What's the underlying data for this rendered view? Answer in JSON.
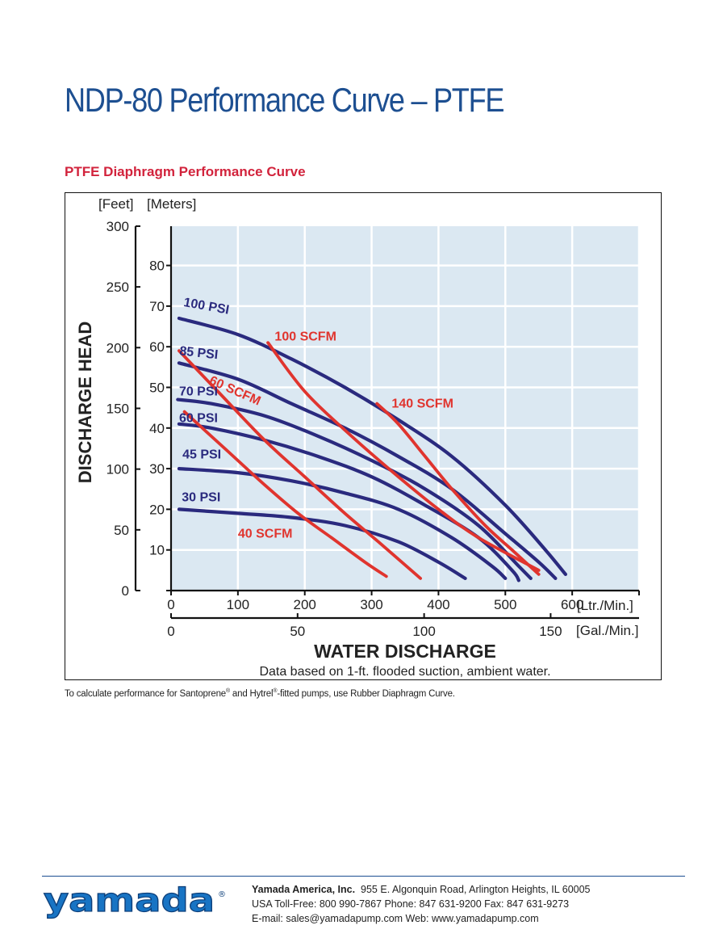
{
  "page": {
    "title": "NDP-80 Performance Curve – PTFE",
    "chart_heading": "PTFE Diaphragm Performance Curve",
    "footnote_parts": [
      "To calculate performance for Santoprene",
      "®",
      " and Hytrel",
      "®",
      "-fitted pumps, use Rubber Diaphragm Curve."
    ]
  },
  "footer": {
    "logo_text": "yamada",
    "logo_mark": "®",
    "company": "Yamada America, Inc.",
    "address": "955 E. Algonquin Road, Arlington Heights, IL 60005",
    "phones": "USA Toll-Free: 800 990-7867 Phone: 847 631-9200 Fax: 847 631-9273",
    "web": "E-mail: sales@yamadapump.com   Web: www.yamadapump.com"
  },
  "colors": {
    "title": "#1d4f91",
    "heading": "#d2233c",
    "plot_bg": "#dbe8f2",
    "psi_curve": "#2a2a7e",
    "scfm_curve": "#e0342e"
  },
  "chart_data": {
    "type": "line",
    "xlabel": "WATER DISCHARGE",
    "x_unit_primary": "[Ltr./Min.]",
    "x_unit_secondary": "[Gal./Min.]",
    "ylabel": "DISCHARGE HEAD",
    "y_unit_left": "[Feet]",
    "y_unit_right": "[Meters]",
    "note": "Data based on 1-ft. flooded suction, ambient water.",
    "xlim": [
      0,
      700
    ],
    "ylim_meters": [
      0,
      90
    ],
    "x_ticks_lpm": [
      0,
      100,
      200,
      300,
      400,
      500,
      600
    ],
    "x_ticks_gpm": [
      0,
      50,
      100,
      150
    ],
    "y_ticks_meters": [
      0,
      10,
      20,
      30,
      40,
      50,
      60,
      70,
      80
    ],
    "y_ticks_feet": [
      0,
      50,
      100,
      150,
      200,
      250,
      300
    ],
    "grid": true,
    "series": [
      {
        "name": "100 PSI",
        "kind": "psi",
        "x": [
          12,
          100,
          180,
          260,
          340,
          420,
          500,
          560,
          590
        ],
        "y": [
          67,
          63,
          57,
          50,
          42,
          33,
          21,
          10,
          4
        ],
        "label_x": 18,
        "label_y": 70
      },
      {
        "name": "85 PSI",
        "kind": "psi",
        "x": [
          12,
          100,
          180,
          260,
          340,
          420,
          500,
          550,
          575
        ],
        "y": [
          56,
          52,
          46,
          40,
          33,
          25,
          14,
          7,
          3
        ],
        "label_x": 12,
        "label_y": 58
      },
      {
        "name": "70 PSI",
        "kind": "psi",
        "x": [
          10,
          60,
          140,
          220,
          300,
          380,
          460,
          520,
          538
        ],
        "y": [
          47,
          46,
          43,
          38,
          32,
          25,
          16,
          6,
          3
        ],
        "label_x": 12,
        "label_y": 48
      },
      {
        "name": "60 PSI",
        "kind": "psi",
        "x": [
          12,
          60,
          140,
          220,
          300,
          380,
          460,
          510,
          520
        ],
        "y": [
          41,
          40,
          37,
          33,
          28,
          21,
          13,
          5,
          2.5
        ],
        "label_x": 12,
        "label_y": 41.5
      },
      {
        "name": "45 PSI",
        "kind": "psi",
        "x": [
          12,
          100,
          180,
          260,
          340,
          420,
          480,
          500
        ],
        "y": [
          30,
          29,
          27,
          24,
          20,
          13,
          6,
          3
        ],
        "label_x": 17,
        "label_y": 32.5
      },
      {
        "name": "30 PSI",
        "kind": "psi",
        "x": [
          12,
          100,
          180,
          260,
          340,
          400,
          440
        ],
        "y": [
          20,
          19,
          18,
          16,
          12,
          7,
          3
        ],
        "label_x": 16,
        "label_y": 22
      },
      {
        "name": "100 SCFM",
        "kind": "scfm",
        "x": [
          145,
          200,
          270,
          340,
          400,
          460,
          550
        ],
        "y": [
          61,
          49,
          38,
          28,
          20,
          13,
          5
        ],
        "label_x": 155,
        "label_y": 61.5
      },
      {
        "name": "60 SCFM",
        "kind": "scfm",
        "x": [
          12,
          70,
          140,
          200,
          260,
          310,
          373
        ],
        "y": [
          59,
          49,
          37,
          28,
          19,
          12,
          3
        ],
        "label_x": 56,
        "label_y": 51
      },
      {
        "name": "140 SCFM",
        "kind": "scfm",
        "x": [
          308,
          340,
          380,
          420,
          470,
          510,
          550
        ],
        "y": [
          46,
          41,
          33,
          25,
          16,
          10,
          4
        ],
        "label_x": 330,
        "label_y": 45
      },
      {
        "name": "40 SCFM",
        "kind": "scfm",
        "x": [
          20,
          80,
          140,
          190,
          240,
          290,
          322
        ],
        "y": [
          44,
          35,
          26,
          19,
          13,
          7,
          3.5
        ],
        "label_x": 100,
        "label_y": 13
      }
    ]
  }
}
